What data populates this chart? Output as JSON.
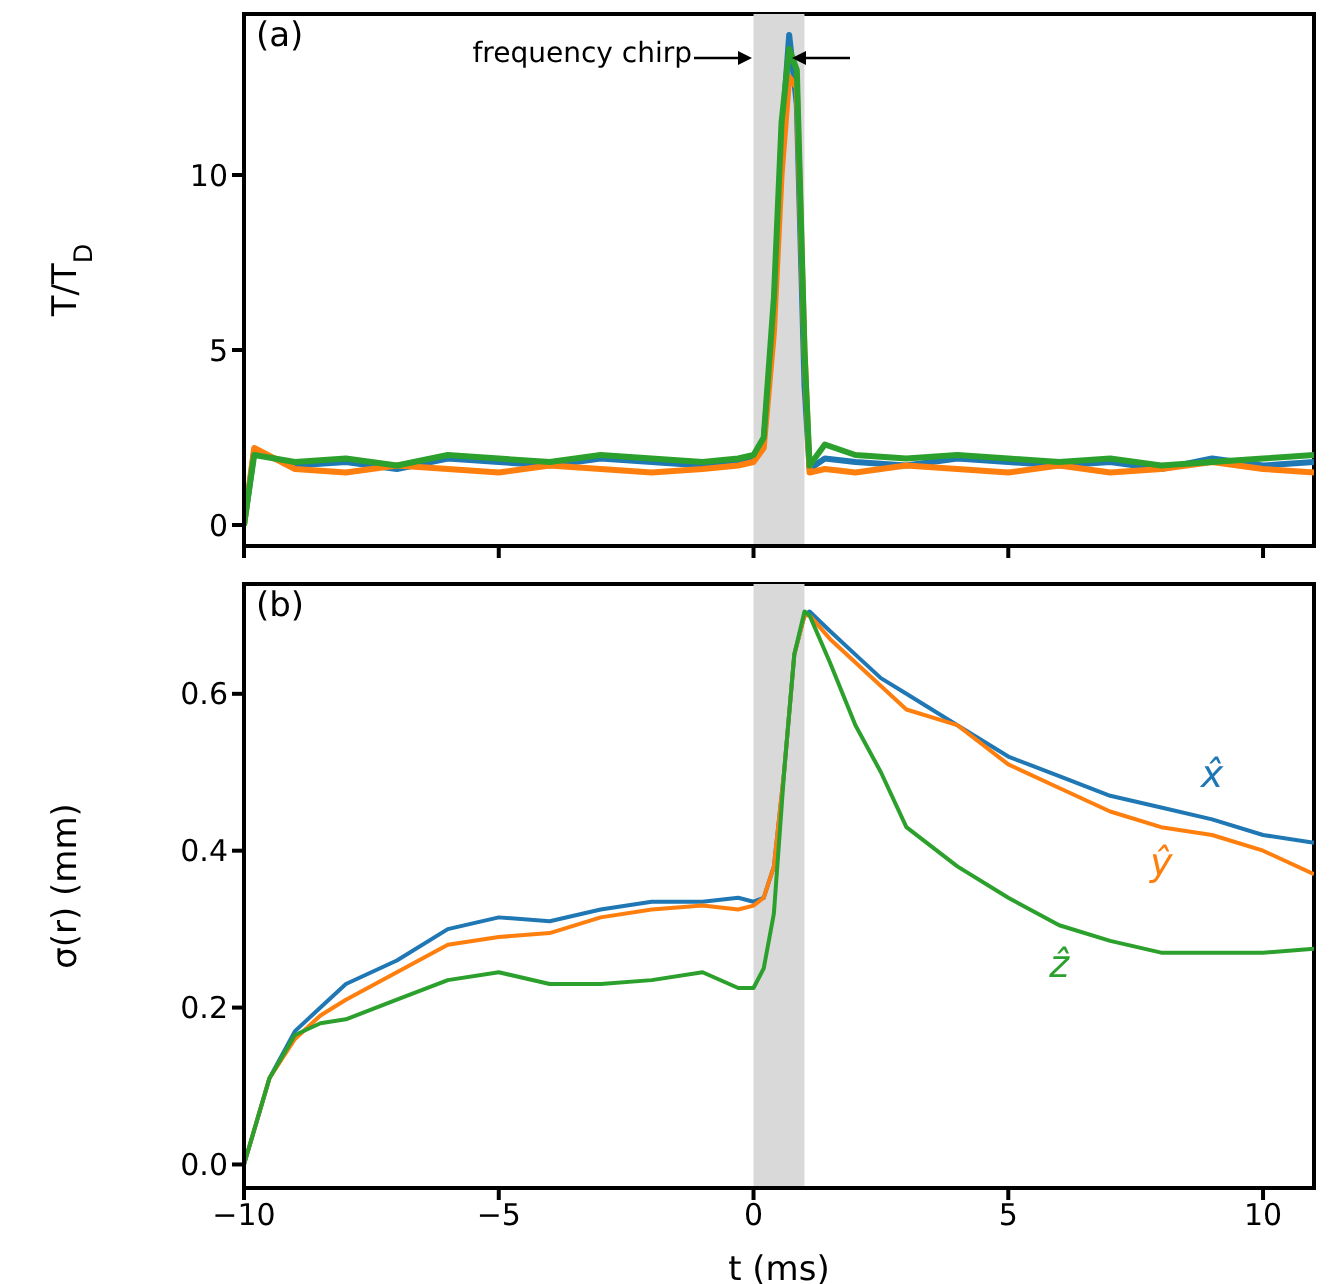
{
  "chart_data": [
    {
      "type": "line",
      "ylabel": "T/T$_{D}$",
      "annotations": [
        "(a)",
        "frequency chirp"
      ],
      "tick_labels": "y",
      "legend": false,
      "grid": false,
      "x": [
        -10,
        -9.8,
        -9,
        -8,
        -7,
        -6,
        -5,
        -4,
        -3,
        -2,
        -1,
        -0.3,
        0,
        0.2,
        0.4,
        0.55,
        0.7,
        0.85,
        1.0,
        1.1,
        1.4,
        2,
        3,
        4,
        5,
        6,
        7,
        8,
        9,
        10,
        11
      ],
      "series": [
        {
          "color": "#1f77b4",
          "values": [
            0,
            2.1,
            1.7,
            1.8,
            1.6,
            1.9,
            1.8,
            1.7,
            1.9,
            1.8,
            1.7,
            1.8,
            1.9,
            2.4,
            6,
            11,
            14,
            12,
            4,
            1.6,
            1.9,
            1.8,
            1.7,
            1.9,
            1.8,
            1.7,
            1.8,
            1.6,
            1.9,
            1.7,
            1.8
          ]
        },
        {
          "color": "#ff7f0e",
          "values": [
            0,
            2.2,
            1.6,
            1.5,
            1.7,
            1.6,
            1.5,
            1.7,
            1.6,
            1.5,
            1.6,
            1.7,
            1.8,
            2.2,
            5.5,
            10,
            12.8,
            12.5,
            5,
            1.5,
            1.6,
            1.5,
            1.7,
            1.6,
            1.5,
            1.7,
            1.5,
            1.6,
            1.8,
            1.6,
            1.5
          ]
        },
        {
          "color": "#2ca02c",
          "values": [
            0,
            2.0,
            1.8,
            1.9,
            1.7,
            2.0,
            1.9,
            1.8,
            2.0,
            1.9,
            1.8,
            1.9,
            2.0,
            2.5,
            6.5,
            11.5,
            13.6,
            13,
            5,
            1.7,
            2.3,
            2.0,
            1.9,
            2.0,
            1.9,
            1.8,
            1.9,
            1.7,
            1.8,
            1.9,
            2.0
          ]
        }
      ],
      "xlim": [
        -10,
        11
      ],
      "xticks": [
        -10,
        -5,
        0,
        5,
        10
      ],
      "ylim": [
        -0.6,
        14.6
      ],
      "yticks": [
        0,
        5,
        10
      ],
      "bands": [
        {
          "axis": "x",
          "from": 0,
          "to": 1,
          "color": "#d9d9d9"
        }
      ]
    },
    {
      "type": "line",
      "xlabel": "t (ms)",
      "ylabel": "σ(r) (mm)",
      "annotations": [
        "(b)"
      ],
      "legend": false,
      "grid": false,
      "x": [
        -10,
        -9.5,
        -9,
        -8.5,
        -8,
        -7,
        -6,
        -5,
        -4,
        -3,
        -2,
        -1,
        -0.3,
        0,
        0.2,
        0.4,
        0.6,
        0.8,
        1.0,
        1.1,
        1.5,
        2,
        2.5,
        3,
        4,
        5,
        6,
        7,
        8,
        9,
        10,
        11
      ],
      "series": [
        {
          "name": "x̂",
          "color": "#1f77b4",
          "values": [
            0,
            0.11,
            0.17,
            0.2,
            0.23,
            0.26,
            0.3,
            0.315,
            0.31,
            0.325,
            0.335,
            0.335,
            0.34,
            0.335,
            0.34,
            0.38,
            0.5,
            0.65,
            0.7,
            0.705,
            0.68,
            0.65,
            0.62,
            0.6,
            0.56,
            0.52,
            0.495,
            0.47,
            0.455,
            0.44,
            0.42,
            0.41
          ]
        },
        {
          "name": "ŷ",
          "color": "#ff7f0e",
          "values": [
            0,
            0.11,
            0.16,
            0.19,
            0.21,
            0.245,
            0.28,
            0.29,
            0.295,
            0.315,
            0.325,
            0.33,
            0.325,
            0.33,
            0.34,
            0.38,
            0.5,
            0.65,
            0.7,
            0.7,
            0.67,
            0.64,
            0.61,
            0.58,
            0.56,
            0.51,
            0.48,
            0.45,
            0.43,
            0.42,
            0.4,
            0.37
          ]
        },
        {
          "name": "ẑ",
          "color": "#2ca02c",
          "values": [
            0,
            0.11,
            0.165,
            0.18,
            0.185,
            0.21,
            0.235,
            0.245,
            0.23,
            0.23,
            0.235,
            0.245,
            0.225,
            0.225,
            0.25,
            0.32,
            0.5,
            0.65,
            0.705,
            0.7,
            0.64,
            0.56,
            0.5,
            0.43,
            0.38,
            0.34,
            0.305,
            0.285,
            0.27,
            0.27,
            0.27,
            0.275
          ]
        }
      ],
      "xlim": [
        -10,
        11
      ],
      "xticks": [
        {
          "value": -10,
          "label": "−10"
        },
        {
          "value": -5,
          "label": "−5"
        },
        0,
        5,
        10
      ],
      "ylim": [
        -0.03,
        0.74
      ],
      "yticks": [
        {
          "value": 0,
          "label": "0.0"
        },
        {
          "value": 0.2,
          "label": "0.2"
        },
        {
          "value": 0.4,
          "label": "0.4"
        },
        {
          "value": 0.6,
          "label": "0.6"
        }
      ],
      "bands": [
        {
          "axis": "x",
          "from": 0,
          "to": 1,
          "color": "#d9d9d9"
        }
      ]
    }
  ]
}
